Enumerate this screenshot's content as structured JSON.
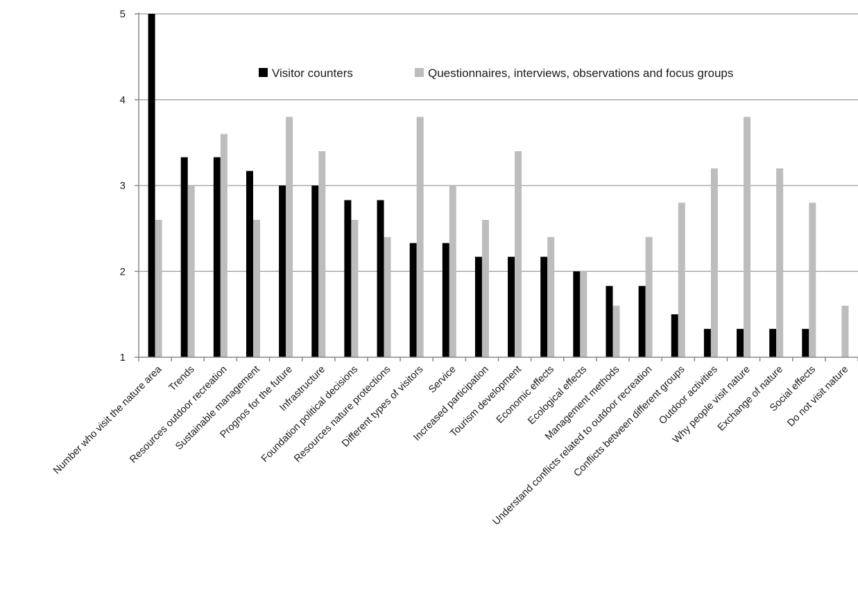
{
  "chart_data": {
    "type": "bar",
    "categories": [
      "Number who visit the nature area",
      "Trends",
      "Resources outdoor recreation",
      "Sustainable management",
      "Prognos for the future",
      "Infrastructure",
      "Foundation political decisions",
      "Resources nature protections",
      "Different types of visitors",
      "Service",
      "Increased participation",
      "Tourism development",
      "Economic effects",
      "Ecological effects",
      "Management methods",
      "Understand conflicts related to outdoor recreation",
      "Conflicts between different groups",
      "Outdoor activities",
      "Why people visit nature",
      "Exchange of nature",
      "Social effects",
      "Do not visit nature"
    ],
    "series": [
      {
        "name": "Visitor counters",
        "color": "#000000",
        "values": [
          5,
          3.33,
          3.33,
          3.17,
          3,
          3,
          2.83,
          2.83,
          2.33,
          2.33,
          2.17,
          2.17,
          2.17,
          2,
          1.83,
          1.83,
          1.5,
          1.33,
          1.33,
          1.33,
          1.33,
          1
        ]
      },
      {
        "name": "Questionnaires, interviews, observations and focus groups",
        "color": "#bdbdbd",
        "values": [
          2.6,
          3,
          3.6,
          2.6,
          3.8,
          3.4,
          2.6,
          2.4,
          3.8,
          3,
          2.6,
          3.4,
          2.4,
          2,
          1.6,
          2.4,
          2.8,
          3.2,
          3.8,
          3.2,
          2.8,
          1.6
        ]
      }
    ],
    "title": "",
    "xlabel": "",
    "ylabel": "",
    "ylim": [
      1,
      5
    ],
    "yticks": [
      "1",
      "2",
      "3",
      "4",
      "5"
    ],
    "grid": true,
    "legend_position": "top"
  }
}
